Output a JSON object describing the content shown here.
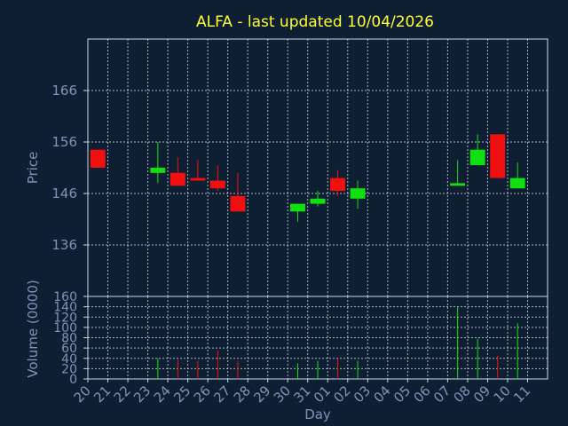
{
  "colors": {
    "background": "#0f1f33",
    "title": "#ffff33",
    "axis_text": "#7d93b8",
    "frame": "#c8d4e8",
    "up": "#10e010",
    "down": "#f01010"
  },
  "chart_data": [
    {
      "type": "candlestick",
      "title": "ALFA - last updated 10/04/2026",
      "ylabel": "Price",
      "xlabel": "",
      "ylim": [
        126,
        176
      ],
      "yticks": [
        "136",
        "146",
        "156",
        "166"
      ],
      "grid": true,
      "x": [
        "20",
        "21",
        "22",
        "23",
        "24",
        "25",
        "26",
        "27",
        "28",
        "29",
        "30",
        "31",
        "01",
        "02",
        "03",
        "04",
        "05",
        "06",
        "07",
        "08",
        "09",
        "10",
        "11"
      ],
      "candles": [
        {
          "x": "20",
          "open": 154.5,
          "close": 151.0,
          "high": 154.5,
          "low": 151.0
        },
        {
          "x": "23",
          "open": 150.0,
          "close": 151.0,
          "high": 156.0,
          "low": 148.0
        },
        {
          "x": "24",
          "open": 150.0,
          "close": 147.5,
          "high": 153.0,
          "low": 147.5
        },
        {
          "x": "25",
          "open": 149.0,
          "close": 148.5,
          "high": 152.5,
          "low": 148.5
        },
        {
          "x": "26",
          "open": 148.5,
          "close": 147.0,
          "high": 151.5,
          "low": 146.5
        },
        {
          "x": "27",
          "open": 145.5,
          "close": 142.5,
          "high": 150.0,
          "low": 142.5
        },
        {
          "x": "30",
          "open": 142.5,
          "close": 144.0,
          "high": 144.0,
          "low": 140.5
        },
        {
          "x": "31",
          "open": 144.0,
          "close": 145.0,
          "high": 146.5,
          "low": 143.5
        },
        {
          "x": "01",
          "open": 149.0,
          "close": 146.5,
          "high": 150.5,
          "low": 145.5
        },
        {
          "x": "02",
          "open": 145.0,
          "close": 147.0,
          "high": 148.5,
          "low": 143.0
        },
        {
          "x": "07",
          "open": 147.5,
          "close": 148.0,
          "high": 152.5,
          "low": 147.5
        },
        {
          "x": "08",
          "open": 151.5,
          "close": 154.5,
          "high": 157.5,
          "low": 151.5
        },
        {
          "x": "09",
          "open": 157.5,
          "close": 149.0,
          "high": 157.5,
          "low": 149.0
        },
        {
          "x": "10",
          "open": 147.0,
          "close": 149.0,
          "high": 152.0,
          "low": 147.0
        }
      ]
    },
    {
      "type": "bar",
      "ylabel": "Volume (0000)",
      "xlabel": "Day",
      "ylim": [
        0,
        160
      ],
      "yticks": [
        "0",
        "20",
        "40",
        "60",
        "80",
        "100",
        "120",
        "140",
        "160"
      ],
      "grid": true,
      "categories": [
        "20",
        "21",
        "22",
        "23",
        "24",
        "25",
        "26",
        "27",
        "28",
        "29",
        "30",
        "31",
        "01",
        "02",
        "03",
        "04",
        "05",
        "06",
        "07",
        "08",
        "09",
        "10",
        "11"
      ],
      "bars": [
        {
          "x": "23",
          "value": 40,
          "direction": "up"
        },
        {
          "x": "24",
          "value": 38,
          "direction": "down"
        },
        {
          "x": "25",
          "value": 35,
          "direction": "down"
        },
        {
          "x": "26",
          "value": 55,
          "direction": "down"
        },
        {
          "x": "27",
          "value": 35,
          "direction": "down"
        },
        {
          "x": "30",
          "value": 30,
          "direction": "up"
        },
        {
          "x": "31",
          "value": 35,
          "direction": "up"
        },
        {
          "x": "01",
          "value": 40,
          "direction": "down"
        },
        {
          "x": "02",
          "value": 35,
          "direction": "up"
        },
        {
          "x": "07",
          "value": 140,
          "direction": "up"
        },
        {
          "x": "08",
          "value": 78,
          "direction": "up"
        },
        {
          "x": "09",
          "value": 45,
          "direction": "down"
        },
        {
          "x": "10",
          "value": 108,
          "direction": "up"
        }
      ]
    }
  ]
}
